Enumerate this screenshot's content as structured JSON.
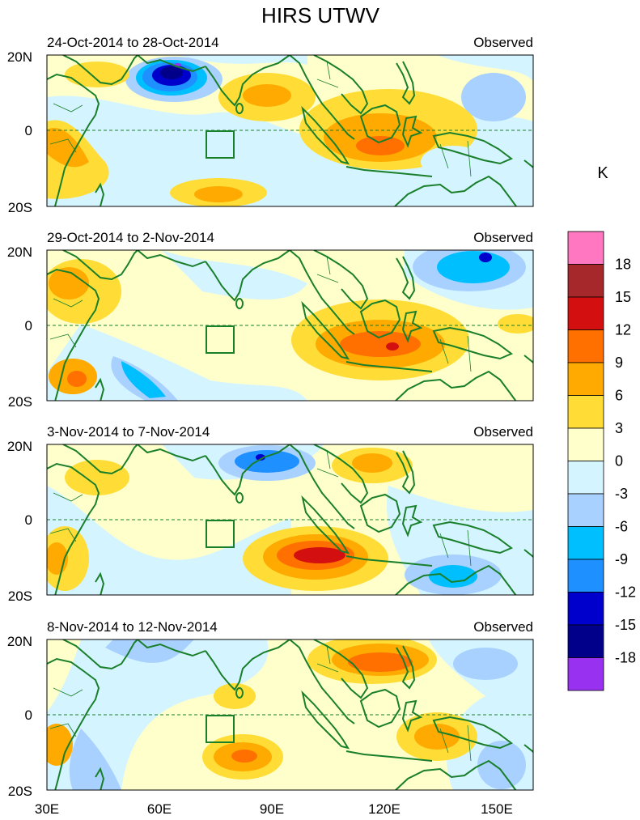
{
  "title": "HIRS UTWV",
  "unit_label": "K",
  "axes": {
    "lat_labels": [
      "20N",
      "0",
      "20S"
    ],
    "lon_labels": [
      "30E",
      "60E",
      "90E",
      "120E",
      "150E"
    ]
  },
  "panels": [
    {
      "date_range": "24-Oct-2014 to 28-Oct-2014",
      "tag": "Observed"
    },
    {
      "date_range": "29-Oct-2014 to 2-Nov-2014",
      "tag": "Observed"
    },
    {
      "date_range": "3-Nov-2014 to 7-Nov-2014",
      "tag": "Observed"
    },
    {
      "date_range": "8-Nov-2014 to 12-Nov-2014",
      "tag": "Observed"
    }
  ],
  "colorbar": {
    "labels": [
      "18",
      "15",
      "12",
      "9",
      "6",
      "3",
      "0",
      "-3",
      "-6",
      "-9",
      "-12",
      "-15",
      "-18"
    ],
    "colors": [
      "#ff77c1",
      "#a6282b",
      "#d40f0f",
      "#ff7000",
      "#ffaa00",
      "#ffdd36",
      "#ffffcc",
      "#d4f4ff",
      "#a9d1ff",
      "#00bfff",
      "#1e90ff",
      "#0000cd",
      "#00008b",
      "#9932f0"
    ]
  },
  "colors": {
    "coast": "#1a7f2b",
    "ocean_base": "#ffffcc"
  }
}
